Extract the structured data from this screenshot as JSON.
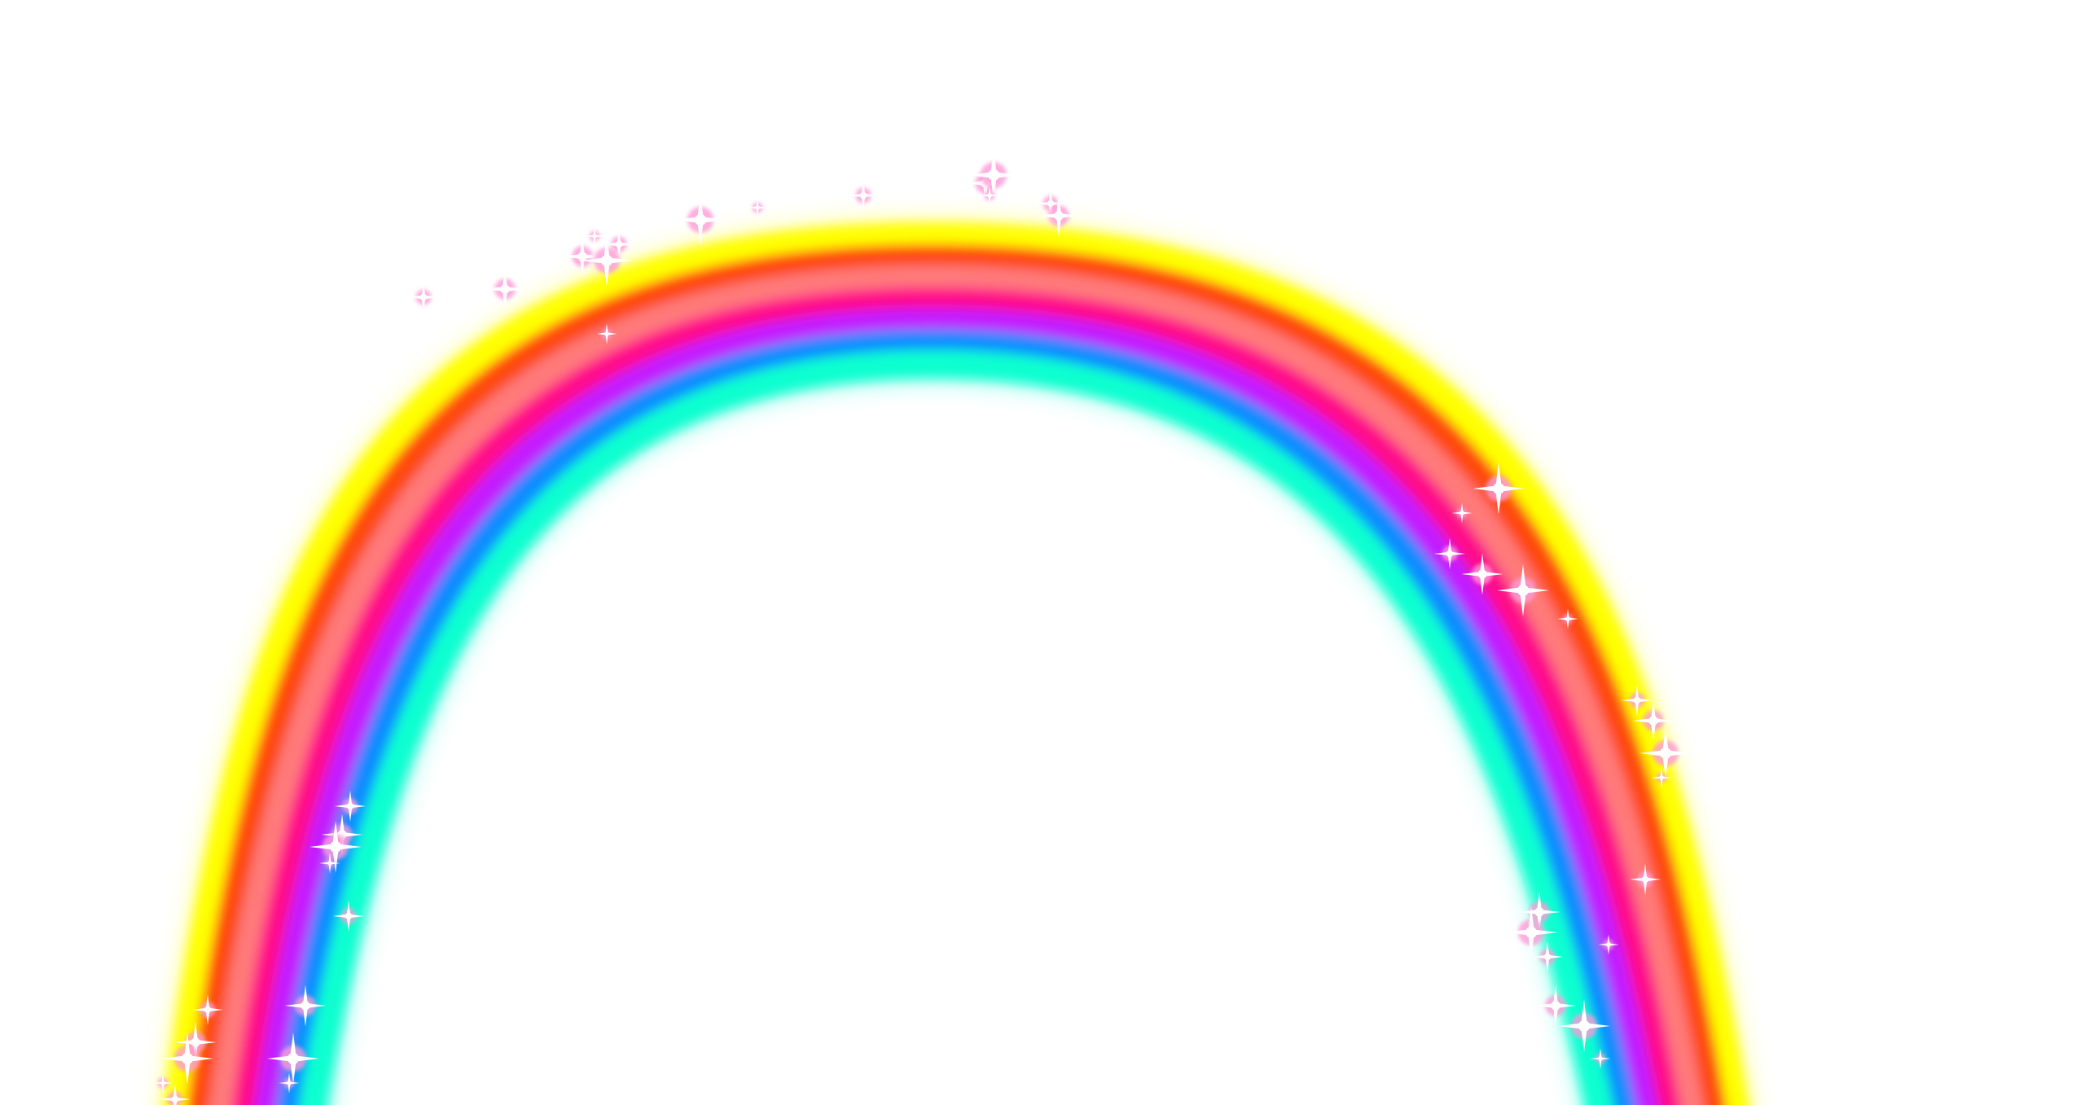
{
  "scene": {
    "subject": "rainbow-arch",
    "background_color": "#ffffff",
    "bands": [
      {
        "name": "yellow-band",
        "color": "#ffff00"
      },
      {
        "name": "orange-band",
        "color": "#ff4a10"
      },
      {
        "name": "salmon-band",
        "color": "#ff7a7a"
      },
      {
        "name": "pink-band",
        "color": "#ff0a8a"
      },
      {
        "name": "violet-band",
        "color": "#c21aff"
      },
      {
        "name": "blue-band",
        "color": "#0a8cff"
      },
      {
        "name": "aqua-band",
        "color": "#0affd0"
      }
    ],
    "sparkle_color": "#ffffff",
    "sparkle_glow_color": "#ff9ad8"
  }
}
